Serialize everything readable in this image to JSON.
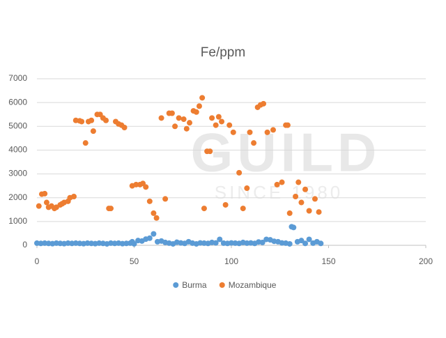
{
  "chart_data": {
    "type": "scatter",
    "title": "Fe/ppm",
    "watermark": {
      "name": "GUILD",
      "since": "SINCE 1980"
    },
    "xlim": [
      0,
      200
    ],
    "xticks": [
      0,
      50,
      100,
      150,
      200
    ],
    "ylim": [
      0,
      7000
    ],
    "yticks": [
      0,
      1000,
      2000,
      3000,
      4000,
      5000,
      6000,
      7000
    ],
    "grid": true,
    "legend": "bottom",
    "series": [
      {
        "name": "Burma",
        "color": "#5b9bd5",
        "x": [
          0,
          2,
          4,
          6,
          8,
          10,
          12,
          14,
          16,
          18,
          20,
          22,
          24,
          26,
          28,
          30,
          32,
          34,
          36,
          38,
          40,
          42,
          44,
          46,
          48,
          49,
          50,
          52,
          54,
          56,
          58,
          60,
          62,
          64,
          66,
          68,
          70,
          72,
          74,
          76,
          78,
          80,
          82,
          84,
          86,
          88,
          90,
          92,
          94,
          96,
          98,
          100,
          102,
          104,
          106,
          108,
          110,
          112,
          114,
          116,
          118,
          120,
          122,
          124,
          126,
          128,
          130,
          131,
          132,
          134,
          136,
          138,
          140,
          142,
          144,
          146
        ],
        "y": [
          90,
          80,
          90,
          80,
          70,
          90,
          80,
          70,
          90,
          80,
          90,
          80,
          70,
          90,
          80,
          70,
          90,
          80,
          60,
          90,
          80,
          90,
          70,
          80,
          90,
          150,
          60,
          200,
          180,
          260,
          300,
          480,
          150,
          180,
          120,
          90,
          60,
          130,
          100,
          80,
          150,
          90,
          60,
          100,
          90,
          80,
          120,
          100,
          250,
          90,
          80,
          100,
          90,
          80,
          120,
          90,
          100,
          80,
          140,
          120,
          250,
          230,
          170,
          150,
          100,
          90,
          60,
          780,
          750,
          150,
          200,
          80,
          250,
          90,
          150,
          80
        ]
      },
      {
        "name": "Mozambique",
        "color": "#ed7d31",
        "x": [
          1,
          2.5,
          4,
          5,
          6,
          7.5,
          9,
          10,
          12,
          13,
          14,
          16,
          17,
          19,
          20,
          22,
          23,
          25,
          26.5,
          28,
          29,
          31,
          32.5,
          34,
          35.5,
          37,
          38,
          40.5,
          42,
          43.5,
          45,
          49,
          51,
          53,
          54.5,
          56,
          58,
          60,
          61.5,
          64,
          66,
          68,
          69.5,
          71,
          73,
          75.5,
          77,
          78.5,
          80.5,
          82,
          83.5,
          85,
          86,
          87.5,
          89,
          90,
          92,
          93.5,
          95,
          97,
          99,
          101,
          104,
          106,
          108,
          109.5,
          111.5,
          113.5,
          115,
          116.5,
          118.5,
          121.5,
          123.5,
          126,
          128,
          129,
          130,
          133,
          134.5,
          136,
          138,
          140,
          143,
          145
        ],
        "y": [
          1650,
          2150,
          2170,
          1800,
          1600,
          1650,
          1550,
          1600,
          1700,
          1750,
          1800,
          1850,
          2000,
          2050,
          5250,
          5230,
          5200,
          4300,
          5200,
          5250,
          4800,
          5500,
          5500,
          5350,
          5250,
          1550,
          1550,
          5200,
          5100,
          5050,
          4950,
          2500,
          2550,
          2550,
          2600,
          2450,
          1850,
          1350,
          1150,
          5350,
          1950,
          5550,
          5550,
          5000,
          5350,
          5300,
          4900,
          5150,
          5650,
          5600,
          5850,
          6200,
          1550,
          3950,
          3950,
          5350,
          5050,
          5400,
          5200,
          1700,
          5050,
          4750,
          3050,
          1550,
          2400,
          4750,
          4300,
          5800,
          5900,
          5950,
          4750,
          4850,
          2550,
          2650,
          5050,
          5050,
          1350,
          2050,
          2650,
          1800,
          2350,
          1450,
          1950,
          1400
        ]
      }
    ]
  }
}
